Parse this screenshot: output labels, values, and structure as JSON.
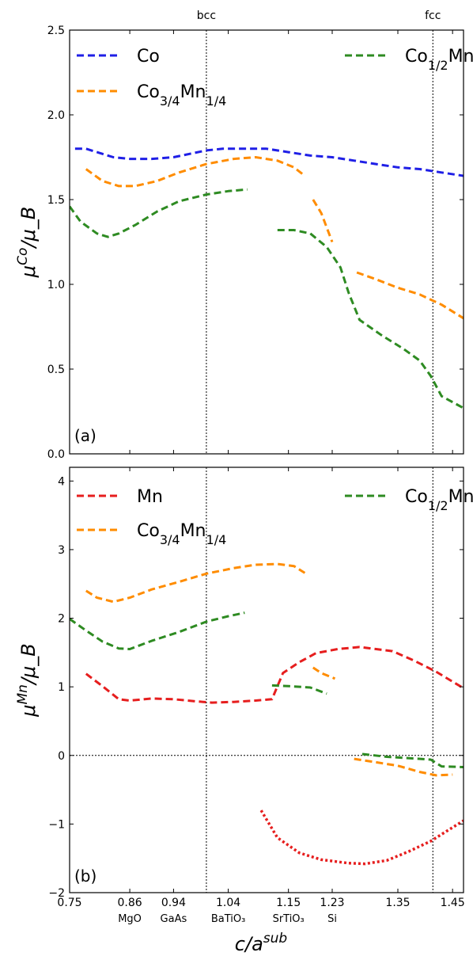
{
  "chart_data": [
    {
      "type": "line",
      "panel_label": "(a)",
      "ylabel": "μ^{Co}/μ_B",
      "xlabel": "c/a^{sub}",
      "xlim": [
        0.75,
        1.47
      ],
      "ylim": [
        0.0,
        2.5
      ],
      "yticks": [
        "0.0",
        "0.5",
        "1.0",
        "1.5",
        "2.0",
        "2.5"
      ],
      "ytick_values": [
        0.0,
        0.5,
        1.0,
        1.5,
        2.0,
        2.5
      ],
      "reference_lines": [
        {
          "label": "bcc",
          "x": 1.0
        },
        {
          "label": "fcc",
          "x": 1.414
        }
      ],
      "legend": {
        "placement": "top",
        "columns": 2
      },
      "series": [
        {
          "name": "Co",
          "color": "#1f1fe6",
          "style": "dashed",
          "segments": [
            [
              [
                0.76,
                1.8
              ],
              [
                0.78,
                1.8
              ],
              [
                0.8,
                1.78
              ],
              [
                0.83,
                1.75
              ],
              [
                0.86,
                1.74
              ],
              [
                0.9,
                1.74
              ],
              [
                0.94,
                1.75
              ],
              [
                0.97,
                1.77
              ],
              [
                1.0,
                1.79
              ],
              [
                1.03,
                1.8
              ],
              [
                1.07,
                1.8
              ],
              [
                1.11,
                1.8
              ],
              [
                1.15,
                1.78
              ],
              [
                1.19,
                1.76
              ],
              [
                1.23,
                1.75
              ],
              [
                1.27,
                1.73
              ],
              [
                1.31,
                1.71
              ],
              [
                1.35,
                1.69
              ],
              [
                1.39,
                1.68
              ],
              [
                1.43,
                1.66
              ],
              [
                1.47,
                1.64
              ]
            ]
          ]
        },
        {
          "name": "Co_{3/4}Mn_{1/4}",
          "color": "#ff8c00",
          "style": "dashed",
          "segments": [
            [
              [
                0.78,
                1.68
              ],
              [
                0.81,
                1.61
              ],
              [
                0.84,
                1.58
              ],
              [
                0.87,
                1.58
              ],
              [
                0.91,
                1.61
              ],
              [
                0.95,
                1.66
              ],
              [
                1.0,
                1.71
              ],
              [
                1.05,
                1.74
              ],
              [
                1.09,
                1.75
              ],
              [
                1.13,
                1.73
              ],
              [
                1.16,
                1.69
              ],
              [
                1.18,
                1.64
              ]
            ],
            [
              [
                1.195,
                1.5
              ],
              [
                1.21,
                1.42
              ],
              [
                1.23,
                1.25
              ]
            ],
            [
              [
                1.275,
                1.07
              ],
              [
                1.31,
                1.03
              ],
              [
                1.35,
                0.98
              ],
              [
                1.39,
                0.94
              ],
              [
                1.43,
                0.88
              ],
              [
                1.47,
                0.8
              ]
            ]
          ]
        },
        {
          "name": "Co_{1/2}Mn_{1/2}",
          "color": "#2e8b22",
          "style": "dashed",
          "segments": [
            [
              [
                0.75,
                1.46
              ],
              [
                0.77,
                1.37
              ],
              [
                0.8,
                1.3
              ],
              [
                0.82,
                1.28
              ],
              [
                0.84,
                1.3
              ],
              [
                0.87,
                1.35
              ],
              [
                0.91,
                1.43
              ],
              [
                0.95,
                1.49
              ],
              [
                1.0,
                1.53
              ],
              [
                1.04,
                1.55
              ],
              [
                1.075,
                1.56
              ]
            ],
            [
              [
                1.13,
                1.32
              ],
              [
                1.16,
                1.32
              ],
              [
                1.19,
                1.3
              ],
              [
                1.22,
                1.22
              ],
              [
                1.245,
                1.1
              ],
              [
                1.26,
                0.95
              ],
              [
                1.28,
                0.79
              ],
              [
                1.32,
                0.7
              ],
              [
                1.36,
                0.62
              ],
              [
                1.39,
                0.55
              ],
              [
                1.41,
                0.46
              ],
              [
                1.43,
                0.34
              ],
              [
                1.47,
                0.27
              ]
            ]
          ]
        }
      ]
    },
    {
      "type": "line",
      "panel_label": "(b)",
      "ylabel": "μ^{Mn}/μ_B",
      "xlabel": "c/a^{sub}",
      "xlim": [
        0.75,
        1.47
      ],
      "ylim": [
        -2.0,
        4.2
      ],
      "yticks": [
        "−2",
        "−1",
        "0",
        "1",
        "2",
        "3",
        "4"
      ],
      "ytick_values": [
        -2,
        -1,
        0,
        1,
        2,
        3,
        4
      ],
      "xticks": [
        "0.75",
        "0.86",
        "0.94",
        "1.04",
        "1.15",
        "1.23",
        "1.35",
        "1.45"
      ],
      "xtick_values": [
        0.75,
        0.86,
        0.94,
        1.04,
        1.15,
        1.23,
        1.35,
        1.45
      ],
      "substrate_labels": [
        {
          "label": "MgO",
          "x": 0.86
        },
        {
          "label": "GaAs",
          "x": 0.94
        },
        {
          "label": "BaTiO₃",
          "x": 1.04
        },
        {
          "label": "SrTiO₃",
          "x": 1.15
        },
        {
          "label": "Si",
          "x": 1.23
        }
      ],
      "reference_lines": [
        {
          "label": "bcc",
          "x": 1.0
        },
        {
          "label": "fcc",
          "x": 1.414
        },
        {
          "label": "",
          "y": 0
        }
      ],
      "legend": {
        "placement": "top",
        "columns": 2
      },
      "series": [
        {
          "name": "Mn",
          "color": "#e61e1e",
          "style": "dashed",
          "segments": [
            [
              [
                0.78,
                1.19
              ],
              [
                0.81,
                1.01
              ],
              [
                0.84,
                0.82
              ],
              [
                0.86,
                0.8
              ],
              [
                0.9,
                0.83
              ],
              [
                0.94,
                0.82
              ],
              [
                0.98,
                0.79
              ],
              [
                1.01,
                0.77
              ],
              [
                1.05,
                0.78
              ],
              [
                1.09,
                0.8
              ],
              [
                1.12,
                0.82
              ],
              [
                1.14,
                1.2
              ],
              [
                1.17,
                1.36
              ],
              [
                1.2,
                1.49
              ],
              [
                1.24,
                1.55
              ],
              [
                1.28,
                1.58
              ],
              [
                1.34,
                1.52
              ],
              [
                1.38,
                1.38
              ],
              [
                1.42,
                1.22
              ],
              [
                1.47,
                0.98
              ]
            ]
          ]
        },
        {
          "name": "",
          "color": "#e61e1e",
          "style": "dotted",
          "segments": [
            [
              [
                1.1,
                -0.8
              ],
              [
                1.13,
                -1.2
              ],
              [
                1.17,
                -1.42
              ],
              [
                1.21,
                -1.52
              ],
              [
                1.26,
                -1.57
              ],
              [
                1.29,
                -1.58
              ],
              [
                1.33,
                -1.53
              ],
              [
                1.37,
                -1.4
              ],
              [
                1.41,
                -1.25
              ],
              [
                1.44,
                -1.1
              ],
              [
                1.47,
                -0.95
              ]
            ]
          ]
        },
        {
          "name": "Co_{3/4}Mn_{1/4}",
          "color": "#ff8c00",
          "style": "dashed",
          "segments": [
            [
              [
                0.78,
                2.4
              ],
              [
                0.8,
                2.3
              ],
              [
                0.83,
                2.24
              ],
              [
                0.86,
                2.3
              ],
              [
                0.9,
                2.42
              ],
              [
                0.95,
                2.53
              ],
              [
                1.0,
                2.65
              ],
              [
                1.05,
                2.73
              ],
              [
                1.09,
                2.78
              ],
              [
                1.13,
                2.79
              ],
              [
                1.16,
                2.76
              ],
              [
                1.18,
                2.66
              ]
            ],
            [
              [
                1.195,
                1.28
              ],
              [
                1.21,
                1.2
              ],
              [
                1.235,
                1.12
              ]
            ],
            [
              [
                1.27,
                -0.05
              ],
              [
                1.31,
                -0.1
              ],
              [
                1.35,
                -0.15
              ],
              [
                1.39,
                -0.24
              ],
              [
                1.42,
                -0.29
              ],
              [
                1.45,
                -0.28
              ]
            ]
          ]
        },
        {
          "name": "Co_{1/2}Mn_{1/2}",
          "color": "#2e8b22",
          "style": "dashed",
          "segments": [
            [
              [
                0.75,
                1.99
              ],
              [
                0.78,
                1.82
              ],
              [
                0.81,
                1.66
              ],
              [
                0.84,
                1.56
              ],
              [
                0.86,
                1.55
              ],
              [
                0.9,
                1.67
              ],
              [
                0.95,
                1.8
              ],
              [
                1.0,
                1.95
              ],
              [
                1.04,
                2.03
              ],
              [
                1.07,
                2.08
              ]
            ],
            [
              [
                1.12,
                1.02
              ],
              [
                1.15,
                1.01
              ],
              [
                1.19,
                0.99
              ],
              [
                1.22,
                0.9
              ]
            ],
            [
              [
                1.285,
                0.02
              ],
              [
                1.33,
                -0.02
              ],
              [
                1.37,
                -0.04
              ],
              [
                1.41,
                -0.06
              ],
              [
                1.43,
                -0.16
              ],
              [
                1.47,
                -0.17
              ]
            ]
          ]
        }
      ]
    }
  ]
}
